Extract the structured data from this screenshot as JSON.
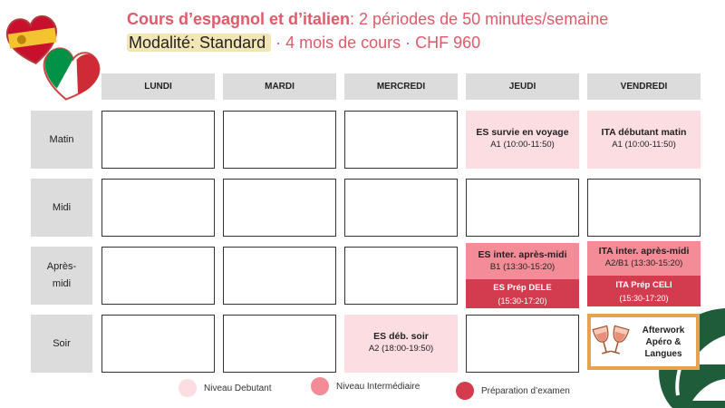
{
  "header": {
    "title_bold": "Cours d’espagnol et d’italien",
    "title_rest": ": 2 périodes de 50 minutes/semaine",
    "modality_tag": "Modalité: Standard",
    "modality_rest": " · 4 mois de cours · CHF 960"
  },
  "days": [
    "LUNDI",
    "MARDI",
    "MERCREDI",
    "JEUDI",
    "VENDREDI"
  ],
  "rows": {
    "matin": "Matin",
    "midi": "Midi",
    "apres_l1": "Après-",
    "apres_l2": "midi",
    "soir": "Soir"
  },
  "courses": {
    "jeudi_matin": {
      "title": "ES survie en voyage",
      "time": "A1 (10:00-11:50)"
    },
    "vendredi_matin": {
      "title": "ITA débutant matin",
      "time": "A1 (10:00-11:50)"
    },
    "jeudi_apres": {
      "title": "ES inter. après-midi",
      "time": "B1 (13:30-15:20)"
    },
    "jeudi_apres_exam": {
      "title": "ES Prép DELE",
      "time": "(15:30-17:20)"
    },
    "vendredi_apres": {
      "title": "ITA inter. après-midi",
      "time": "A2/B1 (13:30-15:20)"
    },
    "vendredi_apres_exam": {
      "title": "ITA Prép CELI",
      "time": "(15:30-17:20)"
    },
    "mercredi_soir": {
      "title": "ES déb. soir",
      "time": "A2 (18:00-19:50)"
    }
  },
  "afterwork": {
    "line1": "Afterwork",
    "line2": "Apéro &",
    "line3": "Langues"
  },
  "legend": {
    "debutant": "Niveau Debutant",
    "intermediaire": "Niveau Intermédiaire",
    "examen": "Préparation d’examen"
  },
  "colors": {
    "debutant": "#fbdde2",
    "intermediaire": "#f38c97",
    "examen": "#d33b4f",
    "title": "#e05a6a"
  }
}
